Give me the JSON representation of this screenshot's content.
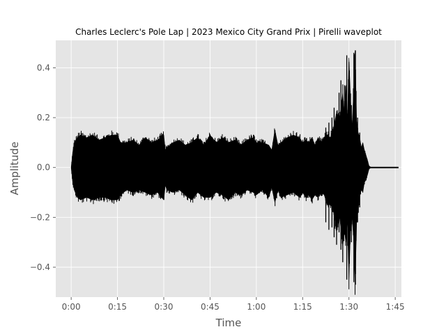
{
  "chart_data": {
    "type": "line",
    "title": "Charles Leclerc's Pole Lap | 2023 Mexico City Grand Prix | Pirelli waveplot",
    "xlabel": "Time",
    "ylabel": "Amplitude",
    "xlim": [
      -5,
      107
    ],
    "ylim": [
      -0.52,
      0.51
    ],
    "x_ticks": [
      {
        "value": 0,
        "label": "0:00"
      },
      {
        "value": 15,
        "label": "0:15"
      },
      {
        "value": 30,
        "label": "0:30"
      },
      {
        "value": 45,
        "label": "0:45"
      },
      {
        "value": 60,
        "label": "1:00"
      },
      {
        "value": 75,
        "label": "1:15"
      },
      {
        "value": 90,
        "label": "1:30"
      },
      {
        "value": 105,
        "label": "1:45"
      }
    ],
    "y_ticks": [
      {
        "value": 0.4,
        "label": "0.4"
      },
      {
        "value": 0.2,
        "label": "0.2"
      },
      {
        "value": 0.0,
        "label": "0.0"
      },
      {
        "value": -0.2,
        "label": "−0.2"
      },
      {
        "value": -0.4,
        "label": "−0.4"
      }
    ],
    "grid": true,
    "series": [
      {
        "color": "#000000",
        "envelope": {
          "t": [
            0,
            0.5,
            1,
            2,
            3,
            5,
            7,
            9,
            11,
            13,
            15,
            16,
            18,
            20,
            22,
            24,
            26,
            28,
            30,
            30.5,
            31,
            33,
            35,
            37,
            39,
            41,
            43,
            45,
            47,
            49,
            51,
            53,
            55,
            57,
            59,
            60,
            62,
            64,
            65,
            66,
            67,
            68,
            70,
            72,
            74,
            75,
            76,
            77,
            78,
            79,
            80,
            81,
            82,
            83,
            84,
            85,
            86,
            87,
            88,
            88.5,
            89,
            89.5,
            90,
            90.5,
            91,
            91.5,
            92,
            92.5,
            93,
            93.5,
            94,
            94.5,
            95,
            95.5,
            96,
            96.5,
            97,
            98,
            100,
            102,
            104,
            106
          ],
          "upper": [
            0.0,
            0.06,
            0.1,
            0.12,
            0.13,
            0.12,
            0.13,
            0.11,
            0.12,
            0.13,
            0.13,
            0.1,
            0.1,
            0.11,
            0.09,
            0.12,
            0.1,
            0.11,
            0.13,
            0.07,
            0.08,
            0.1,
            0.11,
            0.09,
            0.1,
            0.12,
            0.09,
            0.13,
            0.1,
            0.12,
            0.1,
            0.11,
            0.09,
            0.11,
            0.12,
            0.1,
            0.1,
            0.09,
            0.07,
            0.15,
            0.09,
            0.1,
            0.12,
            0.13,
            0.12,
            0.1,
            0.11,
            0.1,
            0.12,
            0.09,
            0.12,
            0.1,
            0.12,
            0.13,
            0.12,
            0.16,
            0.22,
            0.2,
            0.3,
            0.22,
            0.33,
            0.18,
            0.44,
            0.28,
            0.16,
            0.3,
            0.47,
            0.18,
            0.14,
            0.12,
            0.08,
            0.1,
            0.07,
            0.05,
            0.03,
            0.006,
            0.002,
            0.002,
            0.002,
            0.002,
            0.002,
            0.002
          ],
          "lower": [
            0.0,
            -0.06,
            -0.09,
            -0.12,
            -0.13,
            -0.12,
            -0.13,
            -0.12,
            -0.12,
            -0.13,
            -0.13,
            -0.11,
            -0.09,
            -0.1,
            -0.09,
            -0.1,
            -0.11,
            -0.1,
            -0.13,
            -0.07,
            -0.09,
            -0.1,
            -0.09,
            -0.11,
            -0.13,
            -0.1,
            -0.12,
            -0.12,
            -0.1,
            -0.11,
            -0.13,
            -0.1,
            -0.11,
            -0.09,
            -0.1,
            -0.11,
            -0.09,
            -0.12,
            -0.08,
            -0.14,
            -0.09,
            -0.12,
            -0.11,
            -0.1,
            -0.12,
            -0.1,
            -0.12,
            -0.11,
            -0.13,
            -0.11,
            -0.12,
            -0.1,
            -0.11,
            -0.15,
            -0.14,
            -0.18,
            -0.25,
            -0.2,
            -0.32,
            -0.25,
            -0.3,
            -0.21,
            -0.45,
            -0.25,
            -0.2,
            -0.28,
            -0.47,
            -0.22,
            -0.17,
            -0.12,
            -0.08,
            -0.1,
            -0.06,
            -0.05,
            -0.03,
            -0.006,
            -0.002,
            -0.002,
            -0.002,
            -0.002,
            -0.002,
            -0.002
          ]
        },
        "spikes": [
          {
            "t": 82.5,
            "top": 0.16,
            "bottom": -0.22
          },
          {
            "t": 83.5,
            "top": 0.18,
            "bottom": -0.25
          },
          {
            "t": 84.5,
            "top": 0.2,
            "bottom": -0.24
          },
          {
            "t": 85.2,
            "top": 0.24,
            "bottom": -0.28
          },
          {
            "t": 86.0,
            "top": 0.19,
            "bottom": -0.31
          },
          {
            "t": 86.8,
            "top": 0.3,
            "bottom": -0.26
          },
          {
            "t": 87.4,
            "top": 0.35,
            "bottom": -0.33
          },
          {
            "t": 88.0,
            "top": 0.28,
            "bottom": -0.38
          },
          {
            "t": 88.6,
            "top": 0.33,
            "bottom": -0.27
          },
          {
            "t": 89.3,
            "top": 0.45,
            "bottom": -0.45
          },
          {
            "t": 90.0,
            "top": 0.22,
            "bottom": -0.25
          },
          {
            "t": 90.8,
            "top": 0.25,
            "bottom": -0.3
          },
          {
            "t": 91.6,
            "top": 0.46,
            "bottom": -0.46
          },
          {
            "t": 92.1,
            "top": 0.47,
            "bottom": -0.47
          },
          {
            "t": 92.8,
            "top": 0.2,
            "bottom": -0.22
          },
          {
            "t": 93.5,
            "top": 0.14,
            "bottom": -0.16
          }
        ],
        "tail": {
          "start": 97,
          "end": 102,
          "value": 0.0
        }
      }
    ]
  }
}
